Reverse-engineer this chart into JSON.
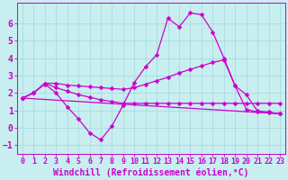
{
  "xlabel": "Windchill (Refroidissement éolien,°C)",
  "bg_color": "#c8eef0",
  "grid_color": "#a0d8dc",
  "line_color": "#cc00cc",
  "xlim": [
    -0.5,
    23.5
  ],
  "ylim": [
    -1.5,
    7.2
  ],
  "xticks": [
    0,
    1,
    2,
    3,
    4,
    5,
    6,
    7,
    8,
    9,
    10,
    11,
    12,
    13,
    14,
    15,
    16,
    17,
    18,
    19,
    20,
    21,
    22,
    23
  ],
  "yticks": [
    -1,
    0,
    1,
    2,
    3,
    4,
    5,
    6
  ],
  "line1_x": [
    0,
    1,
    2,
    3,
    4,
    5,
    6,
    7,
    8,
    9,
    10,
    11,
    12,
    13,
    14,
    15,
    16,
    17,
    18,
    19,
    20,
    21,
    22,
    23
  ],
  "line1_y": [
    1.7,
    2.0,
    2.5,
    2.0,
    1.2,
    0.5,
    -0.3,
    -0.7,
    0.1,
    1.3,
    2.6,
    3.5,
    4.2,
    6.3,
    5.8,
    6.6,
    6.5,
    5.5,
    4.0,
    2.4,
    1.9,
    0.95,
    0.9,
    0.8
  ],
  "line2_x": [
    0,
    1,
    2,
    3,
    4,
    5,
    6,
    7,
    8,
    9,
    10,
    11,
    12,
    13,
    14,
    15,
    16,
    17,
    18,
    19,
    20,
    21,
    22,
    23
  ],
  "line2_y": [
    1.7,
    2.0,
    2.55,
    2.55,
    2.45,
    2.4,
    2.35,
    2.3,
    2.25,
    2.2,
    2.3,
    2.5,
    2.7,
    2.9,
    3.15,
    3.35,
    3.55,
    3.75,
    3.9,
    2.4,
    1.05,
    0.9,
    0.85,
    0.8
  ],
  "line3_x": [
    0,
    1,
    2,
    3,
    4,
    5,
    6,
    7,
    8,
    9,
    10,
    11,
    12,
    13,
    14,
    15,
    16,
    17,
    18,
    19,
    20,
    21,
    22,
    23
  ],
  "line3_y": [
    1.7,
    2.0,
    2.55,
    2.3,
    2.1,
    1.9,
    1.75,
    1.6,
    1.5,
    1.4,
    1.4,
    1.4,
    1.4,
    1.4,
    1.4,
    1.4,
    1.4,
    1.4,
    1.4,
    1.4,
    1.4,
    1.4,
    1.4,
    1.4
  ],
  "line4_x": [
    0,
    23
  ],
  "line4_y": [
    1.7,
    0.8
  ],
  "marker_size": 2.5,
  "font_size_xlabel": 7,
  "font_size_ytick": 7,
  "font_size_xtick": 6
}
